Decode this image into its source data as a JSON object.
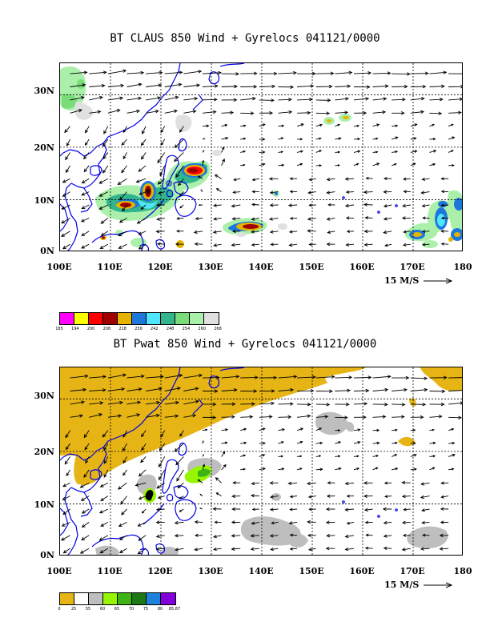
{
  "panels": [
    {
      "title": "BT CLAUS 850 Wind + Gyrelocs 041121/0000",
      "colorbar": {
        "colors": [
          "#ff00ff",
          "#ffff00",
          "#ff0000",
          "#a00000",
          "#e6b400",
          "#1e78dc",
          "#50e6ff",
          "#32b48c",
          "#78dc78",
          "#aaf0aa",
          "#e0e0e0"
        ],
        "labels": [
          "185",
          "194",
          "200",
          "208",
          "218",
          "230",
          "242",
          "248",
          "254",
          "260",
          "268"
        ]
      }
    },
    {
      "title": "BT Pwat 850 Wind + Gyrelocs 041121/0000",
      "colorbar": {
        "colors": [
          "#e6b414",
          "#ffffff",
          "#bebebe",
          "#96f500",
          "#3cb414",
          "#1e7814",
          "#1e82dc",
          "#8200dc"
        ],
        "labels": [
          "0",
          "25",
          "55",
          "60",
          "65",
          "70",
          "75",
          "80",
          "85.87"
        ]
      }
    }
  ],
  "map": {
    "x_labels": [
      "100E",
      "110E",
      "120E",
      "130E",
      "140E",
      "150E",
      "160E",
      "170E",
      "180"
    ],
    "y_labels": [
      "0N",
      "10N",
      "20N",
      "30N"
    ],
    "lon_range": [
      100,
      180
    ],
    "lat_range": [
      0,
      36
    ],
    "vector_reference": "15 M/S"
  }
}
